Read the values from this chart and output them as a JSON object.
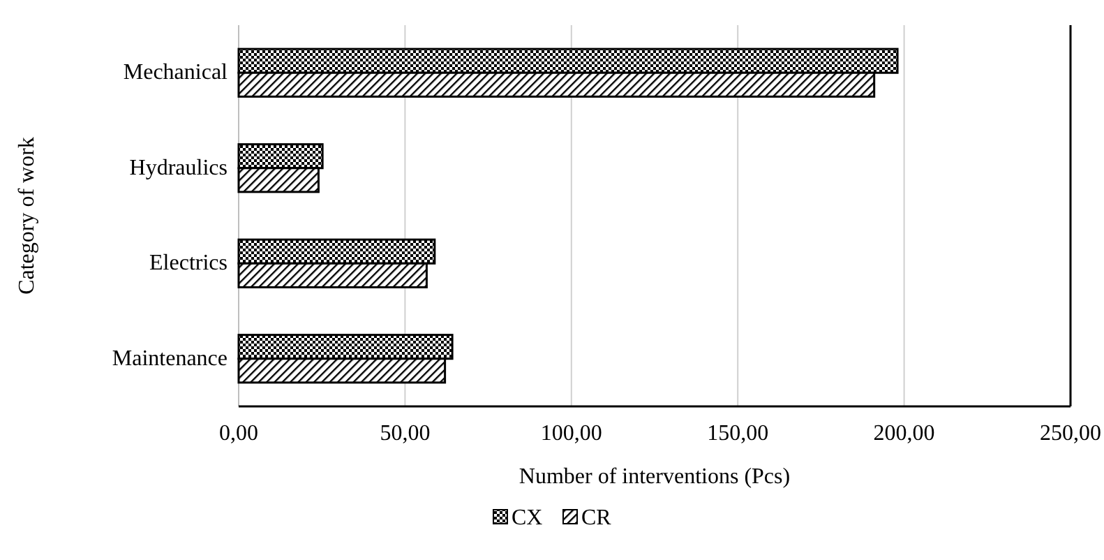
{
  "chart_data": {
    "type": "bar",
    "orientation": "horizontal",
    "xlabel": "Number of interventions (Pcs)",
    "ylabel": "Category of work",
    "categories": [
      "Mechanical",
      "Hydraulics",
      "Electrics",
      "Maintenance"
    ],
    "series": [
      {
        "name": "CX",
        "color": "#000000",
        "values": [
          198,
          25.2,
          58.9,
          64.2
        ]
      },
      {
        "name": "CR",
        "color": "#000000",
        "values": [
          191,
          24,
          56.5,
          62
        ]
      }
    ],
    "xlim": [
      0,
      250
    ],
    "xticks": [
      {
        "value": 0,
        "label": "0,00"
      },
      {
        "value": 50,
        "label": "50,00"
      },
      {
        "value": 100,
        "label": "100,00"
      },
      {
        "value": 150,
        "label": "150,00"
      },
      {
        "value": 200,
        "label": "200,00"
      },
      {
        "value": 250,
        "label": "250,00"
      }
    ],
    "grid": "x",
    "legend": "bottom"
  }
}
